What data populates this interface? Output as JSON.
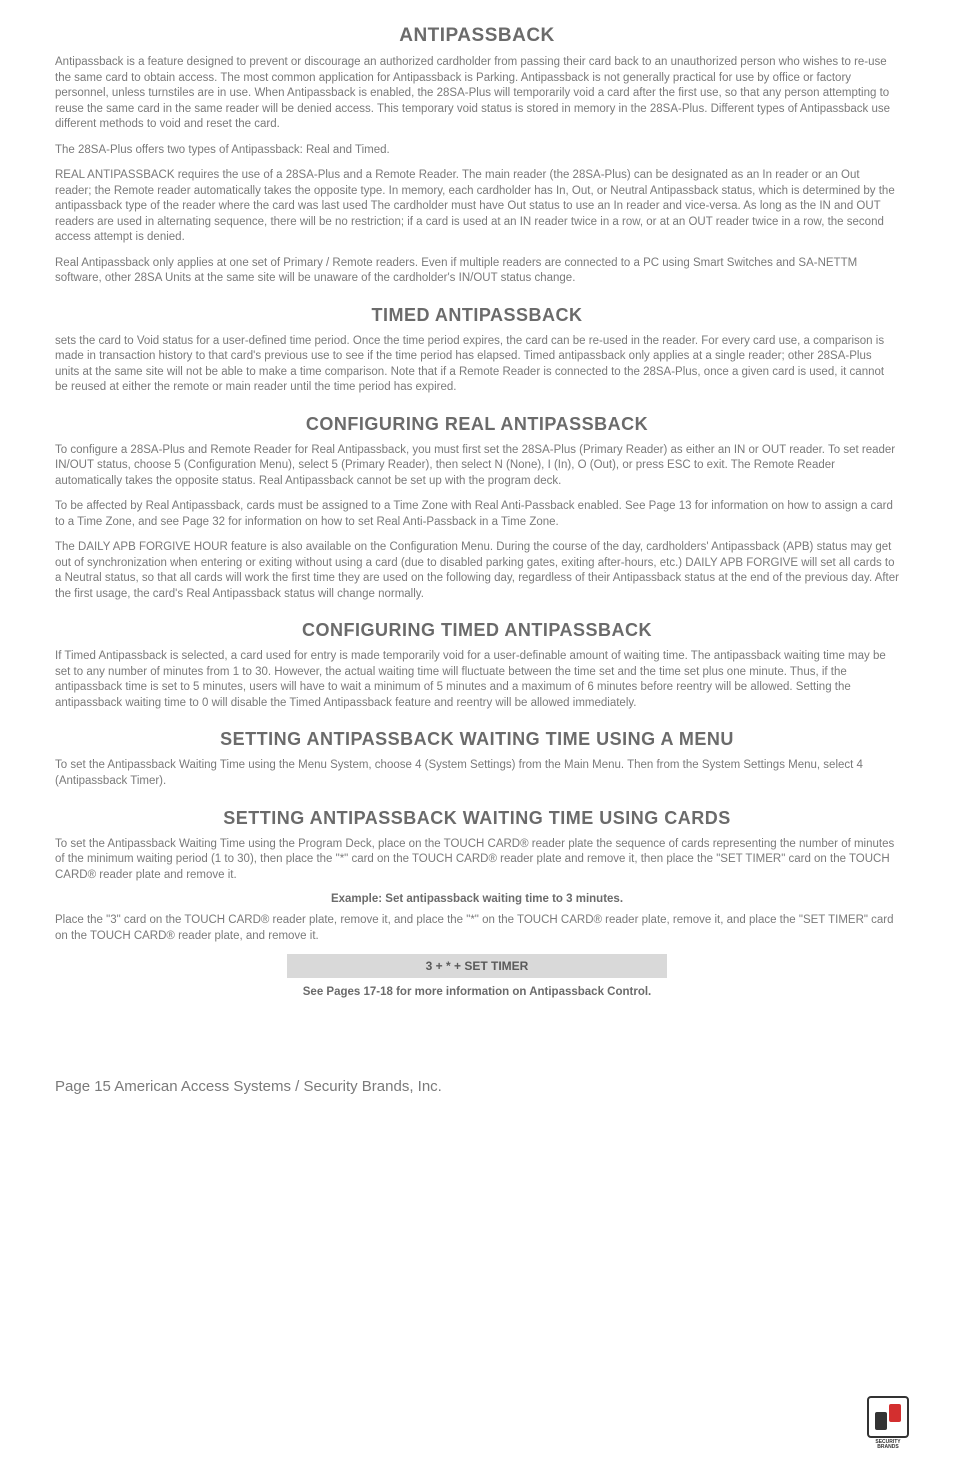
{
  "sections": {
    "antipassback": {
      "title": "ANTIPASSBACK",
      "paragraphs": [
        "Antipassback is a feature designed to prevent or discourage an authorized cardholder from passing their card back to an unauthorized person who wishes to re-use the same card to obtain access.  The most common application for Antipassback is Parking.   Antipassback is not generally practical for use by office or factory personnel, unless turnstiles are in use. When Antipassback is enabled, the 28SA-Plus will temporarily void a card after the first use, so that any person attempting to reuse the same card in the same reader will be denied access. This temporary void status is stored in memory in the 28SA-Plus.  Different types of Antipassback use different methods to void and reset the card.",
        "The 28SA-Plus offers two types of Antipassback: Real and Timed.",
        "REAL ANTIPASSBACK requires the use of a 28SA-Plus and a Remote Reader. The main reader (the 28SA-Plus) can be designated as an In reader or an Out reader; the Remote reader automatically takes the opposite type.  In memory, each cardholder has In, Out, or Neutral Antipassback status, which is determined by the antipassback type of the reader where the card was last used  The cardholder must have Out status to use an In reader and vice-versa.   As long as the IN and OUT readers are used in alternating sequence, there will be no restriction; if a card is used at an IN reader twice in a row, or at an OUT reader twice in a row, the second access attempt is denied.",
        "Real Antipassback only applies at one set of Primary / Remote readers.  Even if multiple readers are connected to a PC using Smart Switches and SA-NETTM software, other 28SA Units at the same site will be unaware of the cardholder's IN/OUT status change."
      ]
    },
    "timed_antipassback": {
      "title": "TIMED ANTIPASSBACK",
      "paragraphs": [
        "sets the card to Void status for a user-defined time period.  Once the time period expires, the card can be re-used in the reader.  For every card use, a comparison is made in transaction history to that card's previous use to see if the time period has elapsed. Timed antipassback only applies at a single reader; other 28SA-Plus units at the same site will not be able to make a time comparison.  Note that if a Remote Reader is connected to the 28SA-Plus, once a given card is used, it cannot be reused at either the remote or main reader until the time period has expired."
      ]
    },
    "configuring_real": {
      "title": "CONFIGURING REAL ANTIPASSBACK",
      "paragraphs": [
        "To configure a 28SA-Plus and Remote Reader for Real Antipassback, you must first set the 28SA-Plus (Primary Reader) as either an IN or OUT reader. To set reader IN/OUT status, choose 5 (Configuration Menu), select 5 (Primary Reader), then select N (None), I (In), O (Out), or press ESC to exit.  The Remote Reader automatically takes the opposite status.  Real Antipassback cannot be set up with the program deck.",
        "To be affected by Real Antipassback, cards must be assigned to a Time Zone with Real Anti-Passback enabled.  See Page 13 for information on  how to assign a card to a Time Zone, and see Page 32  for information on how to set Real Anti-Passback in a Time Zone.",
        "The DAILY APB FORGIVE HOUR feature is also available on the Configuration Menu.  During the course of the day, cardholders' Antipassback (APB) status may get out of synchronization when entering or exiting without using a card (due to disabled parking gates, exiting after-hours, etc.)  DAILY APB FORGIVE will set all cards to a Neutral status, so that all cards will work the first time they are used on the following day, regardless of their Antipassback status at the end of the previous day.  After the first usage, the card's Real Antipassback status will change normally."
      ]
    },
    "configuring_timed": {
      "title": "CONFIGURING TIMED ANTIPASSBACK",
      "paragraphs": [
        "If Timed Antipassback is selected, a card used for entry is made temporarily void for a user-definable amount of waiting time. The antipassback waiting time may be set to any number of minutes from 1 to 30.  However, the actual waiting time will fluctuate between the time set and the time set plus one minute.  Thus, if the antipassback time is set to 5 minutes, users will have to wait a minimum of 5 minutes and a maximum of 6 minutes before reentry will be allowed. Setting the antipassback waiting time to 0 will disable the Timed Antipassback feature and reentry will be allowed immediately."
      ]
    },
    "setting_menu": {
      "title": "SETTING ANTIPASSBACK WAITING TIME USING A MENU",
      "paragraphs": [
        "To set the Antipassback Waiting Time using the Menu System, choose 4 (System Settings) from the Main Menu. Then from the System Settings Menu, select 4 (Antipassback Timer)."
      ]
    },
    "setting_cards": {
      "title": "SETTING ANTIPASSBACK WAITING TIME USING CARDS",
      "paragraphs": [
        "To set the Antipassback Waiting Time using the Program Deck, place on the TOUCH CARD® reader plate the sequence of cards representing the number of minutes of the minimum waiting period (1 to 30), then place the \"*\" card on the TOUCH CARD® reader plate and remove it, then place the \"SET TIMER\" card on the TOUCH CARD® reader plate and remove it."
      ]
    },
    "example": {
      "header": "Example:  Set antipassback waiting time to 3 minutes.",
      "description": "Place the \"3\" card on the TOUCH CARD® reader plate, remove it, and place the \"*\" on the TOUCH CARD® reader plate, remove it, and place the \"SET TIMER\" card on the TOUCH CARD® reader plate, and remove it.",
      "code": "3   +   *   +    SET TIMER",
      "see_pages": "See Pages 17-18 for more information on Antipassback Control."
    }
  },
  "footer": {
    "text": "Page 15 American Access Systems / Security Brands, Inc."
  },
  "logo": {
    "line1": "SECURITY",
    "line2": "BRANDS"
  },
  "styling": {
    "body_width": 954,
    "body_bg": "#ffffff",
    "text_color": "#7a7a7a",
    "heading_color": "#6b6b6b",
    "code_bg": "#d9d9d9",
    "font_family": "Arial, Helvetica, sans-serif",
    "h1_fontsize": 19,
    "h2_fontsize": 18,
    "p_fontsize": 11.5,
    "footer_fontsize": 15
  }
}
